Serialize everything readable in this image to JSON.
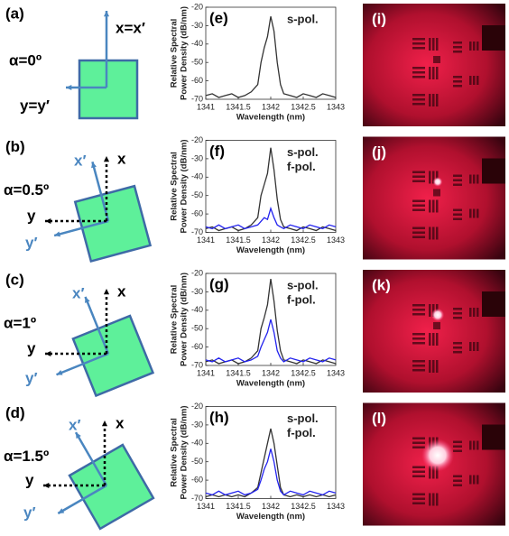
{
  "diagrams": [
    {
      "label": "(a)",
      "angle_label": "α=0º",
      "x_label": "x=x′",
      "y_label": "y=y′"
    },
    {
      "label": "(b)",
      "angle_label": "α=0.5º",
      "x_label": "x",
      "x_prime_label": "x′",
      "y_label": "y",
      "y_prime_label": "y′"
    },
    {
      "label": "(c)",
      "angle_label": "α=1º",
      "x_label": "x",
      "x_prime_label": "x′",
      "y_label": "y",
      "y_prime_label": "y′"
    },
    {
      "label": "(d)",
      "angle_label": "α=1.5º",
      "x_label": "x",
      "x_prime_label": "x′",
      "y_label": "y",
      "y_prime_label": "y′"
    }
  ],
  "chart_data": [
    {
      "type": "line",
      "panel_label": "(e)",
      "annotations": [
        "s-pol."
      ],
      "ylabel": [
        "Relative Spectral",
        "Power Density (dB/nm)"
      ],
      "xlabel": "Wavelength (nm)",
      "xlim": [
        1341,
        1343
      ],
      "xticks": [
        1341,
        1341.5,
        1342,
        1342.5,
        1343
      ],
      "ylim": [
        -70,
        -20
      ],
      "yticks": [
        -70,
        -60,
        -50,
        -40,
        -30,
        -20
      ],
      "x": [
        1341,
        1341.1,
        1341.2,
        1341.3,
        1341.4,
        1341.5,
        1341.6,
        1341.7,
        1341.8,
        1341.85,
        1341.9,
        1341.95,
        1342,
        1342.05,
        1342.1,
        1342.15,
        1342.2,
        1342.3,
        1342.4,
        1342.5,
        1342.6,
        1342.7,
        1342.8,
        1342.9,
        1343
      ],
      "series": [
        {
          "name": "s-pol.",
          "color": "#333333",
          "values": [
            -68,
            -67,
            -69,
            -68,
            -67,
            -69,
            -68,
            -66,
            -62,
            -50,
            -42,
            -36,
            -25,
            -33,
            -50,
            -62,
            -67,
            -68,
            -69,
            -67,
            -68,
            -69,
            -67,
            -68,
            -69
          ]
        }
      ]
    },
    {
      "type": "line",
      "panel_label": "(f)",
      "annotations": [
        "s-pol.",
        "f-pol."
      ],
      "ylabel": [
        "Relative Spectral",
        "Power Density (dB/nm)"
      ],
      "xlabel": "Wavelength (nm)",
      "xlim": [
        1341,
        1343
      ],
      "xticks": [
        1341,
        1341.5,
        1342,
        1342.5,
        1343
      ],
      "ylim": [
        -70,
        -20
      ],
      "yticks": [
        -70,
        -60,
        -50,
        -40,
        -30,
        -20
      ],
      "x": [
        1341,
        1341.1,
        1341.2,
        1341.3,
        1341.4,
        1341.5,
        1341.6,
        1341.7,
        1341.8,
        1341.85,
        1341.9,
        1341.95,
        1342,
        1342.05,
        1342.1,
        1342.15,
        1342.2,
        1342.3,
        1342.4,
        1342.5,
        1342.6,
        1342.7,
        1342.8,
        1342.9,
        1343
      ],
      "series": [
        {
          "name": "s-pol.",
          "color": "#333333",
          "values": [
            -68,
            -67,
            -69,
            -68,
            -67,
            -69,
            -68,
            -66,
            -62,
            -50,
            -44,
            -38,
            -24,
            -36,
            -52,
            -63,
            -67,
            -68,
            -69,
            -67,
            -68,
            -69,
            -67,
            -68,
            -69
          ]
        },
        {
          "name": "f-pol.",
          "color": "#2222ee",
          "values": [
            -67,
            -68,
            -66,
            -68,
            -67,
            -66,
            -68,
            -67,
            -66,
            -64,
            -62,
            -63,
            -57,
            -62,
            -66,
            -67,
            -68,
            -66,
            -67,
            -68,
            -66,
            -67,
            -68,
            -66,
            -67
          ]
        }
      ]
    },
    {
      "type": "line",
      "panel_label": "(g)",
      "annotations": [
        "s-pol.",
        "f-pol."
      ],
      "ylabel": [
        "Relative Spectral",
        "Power Density (dB/nm)"
      ],
      "xlabel": "Wavelength (nm)",
      "xlim": [
        1341,
        1343
      ],
      "xticks": [
        1341,
        1341.5,
        1342,
        1342.5,
        1343
      ],
      "ylim": [
        -70,
        -20
      ],
      "yticks": [
        -70,
        -60,
        -50,
        -40,
        -30,
        -20
      ],
      "x": [
        1341,
        1341.1,
        1341.2,
        1341.3,
        1341.4,
        1341.5,
        1341.6,
        1341.7,
        1341.8,
        1341.85,
        1341.9,
        1341.95,
        1342,
        1342.05,
        1342.1,
        1342.15,
        1342.2,
        1342.3,
        1342.4,
        1342.5,
        1342.6,
        1342.7,
        1342.8,
        1342.9,
        1343
      ],
      "series": [
        {
          "name": "s-pol.",
          "color": "#333333",
          "values": [
            -68,
            -67,
            -69,
            -68,
            -67,
            -69,
            -68,
            -66,
            -62,
            -50,
            -44,
            -37,
            -23,
            -35,
            -51,
            -62,
            -67,
            -68,
            -69,
            -67,
            -68,
            -69,
            -67,
            -68,
            -69
          ]
        },
        {
          "name": "f-pol.",
          "color": "#2222ee",
          "values": [
            -67,
            -68,
            -66,
            -68,
            -67,
            -66,
            -68,
            -67,
            -65,
            -60,
            -56,
            -52,
            -45,
            -52,
            -62,
            -66,
            -68,
            -66,
            -67,
            -68,
            -66,
            -67,
            -68,
            -66,
            -67
          ]
        }
      ]
    },
    {
      "type": "line",
      "panel_label": "(h)",
      "annotations": [
        "s-pol.",
        "f-pol."
      ],
      "ylabel": [
        "Relative Spectral",
        "Power Density (dB/nm)"
      ],
      "xlabel": "Wavelength (nm)",
      "xlim": [
        1341,
        1343
      ],
      "xticks": [
        1341,
        1341.5,
        1342,
        1342.5,
        1343
      ],
      "ylim": [
        -70,
        -20
      ],
      "yticks": [
        -70,
        -60,
        -50,
        -40,
        -30,
        -20
      ],
      "x": [
        1341,
        1341.1,
        1341.2,
        1341.3,
        1341.4,
        1341.5,
        1341.6,
        1341.7,
        1341.8,
        1341.85,
        1341.9,
        1341.95,
        1342,
        1342.05,
        1342.1,
        1342.15,
        1342.2,
        1342.3,
        1342.4,
        1342.5,
        1342.6,
        1342.7,
        1342.8,
        1342.9,
        1343
      ],
      "series": [
        {
          "name": "s-pol.",
          "color": "#333333",
          "values": [
            -69,
            -68,
            -69,
            -68,
            -69,
            -68,
            -69,
            -67,
            -64,
            -56,
            -48,
            -40,
            -32,
            -40,
            -52,
            -64,
            -68,
            -69,
            -68,
            -69,
            -68,
            -69,
            -68,
            -69,
            -68
          ]
        },
        {
          "name": "f-pol.",
          "color": "#2222ee",
          "values": [
            -67,
            -68,
            -66,
            -68,
            -67,
            -66,
            -68,
            -67,
            -65,
            -60,
            -54,
            -50,
            -43,
            -50,
            -60,
            -66,
            -68,
            -66,
            -67,
            -68,
            -66,
            -67,
            -68,
            -66,
            -67
          ]
        }
      ]
    }
  ],
  "images": [
    {
      "label": "(i)"
    },
    {
      "label": "(j)"
    },
    {
      "label": "(k)"
    },
    {
      "label": "(l)"
    }
  ]
}
